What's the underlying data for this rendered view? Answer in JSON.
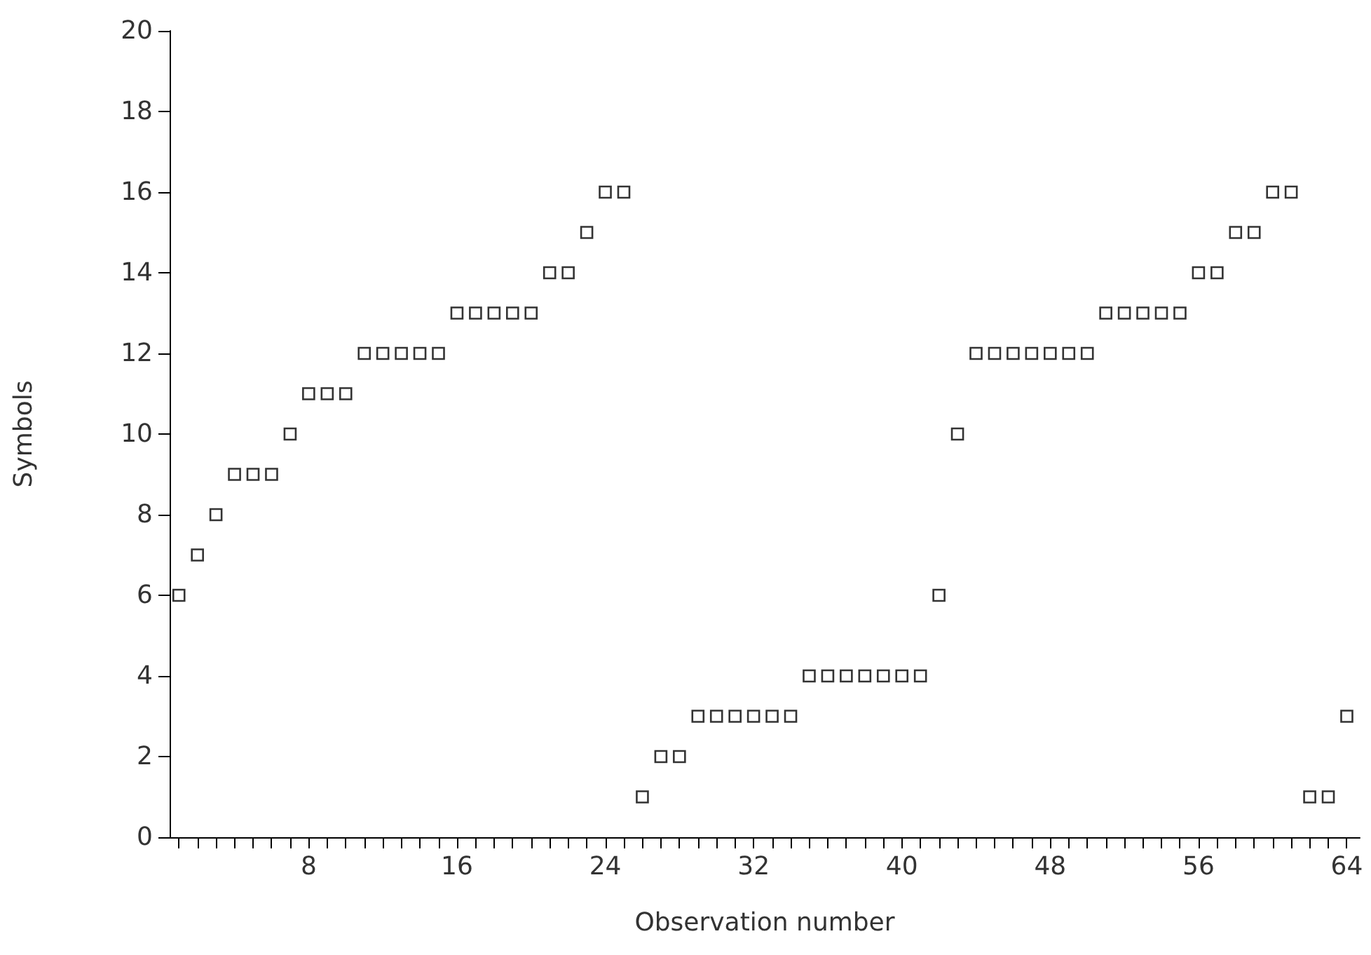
{
  "chart_data": {
    "type": "scatter",
    "xlabel": "Observation number",
    "ylabel": "Symbols",
    "marker": "square",
    "x": [
      1,
      2,
      3,
      4,
      5,
      6,
      7,
      8,
      9,
      10,
      11,
      12,
      13,
      14,
      15,
      16,
      17,
      18,
      19,
      20,
      21,
      22,
      23,
      24,
      25,
      26,
      27,
      28,
      29,
      30,
      31,
      32,
      33,
      34,
      35,
      36,
      37,
      38,
      39,
      40,
      41,
      42,
      43,
      44,
      45,
      46,
      47,
      48,
      49,
      50,
      51,
      52,
      53,
      54,
      55,
      56,
      57,
      58,
      59,
      60,
      61,
      62,
      63,
      64
    ],
    "series": [
      {
        "color": "#000000",
        "values": [
          6,
          7,
          8,
          9,
          9,
          9,
          10,
          11,
          11,
          11,
          12,
          12,
          12,
          12,
          12,
          13,
          13,
          13,
          13,
          13,
          14,
          14,
          15,
          16,
          16,
          1,
          2,
          2,
          3,
          3,
          3,
          3,
          3,
          3,
          4,
          4,
          4,
          4,
          4,
          4,
          4,
          6,
          10,
          12,
          12,
          12,
          12,
          12,
          12,
          12,
          13,
          13,
          13,
          13,
          13,
          14,
          14,
          15,
          15,
          16,
          16,
          1,
          1,
          3
        ]
      }
    ],
    "xlim": [
      0.5,
      64.7
    ],
    "xticks": [
      {
        "value": 1,
        "label": null
      },
      {
        "value": 2,
        "label": null
      },
      {
        "value": 3,
        "label": null
      },
      {
        "value": 4,
        "label": null
      },
      {
        "value": 5,
        "label": null
      },
      {
        "value": 6,
        "label": null
      },
      {
        "value": 7,
        "label": null
      },
      8,
      {
        "value": 9,
        "label": null
      },
      {
        "value": 10,
        "label": null
      },
      {
        "value": 11,
        "label": null
      },
      {
        "value": 12,
        "label": null
      },
      {
        "value": 13,
        "label": null
      },
      {
        "value": 14,
        "label": null
      },
      {
        "value": 15,
        "label": null
      },
      16,
      {
        "value": 17,
        "label": null
      },
      {
        "value": 18,
        "label": null
      },
      {
        "value": 19,
        "label": null
      },
      {
        "value": 20,
        "label": null
      },
      {
        "value": 21,
        "label": null
      },
      {
        "value": 22,
        "label": null
      },
      {
        "value": 23,
        "label": null
      },
      24,
      {
        "value": 25,
        "label": null
      },
      {
        "value": 26,
        "label": null
      },
      {
        "value": 27,
        "label": null
      },
      {
        "value": 28,
        "label": null
      },
      {
        "value": 29,
        "label": null
      },
      {
        "value": 30,
        "label": null
      },
      {
        "value": 31,
        "label": null
      },
      32,
      {
        "value": 33,
        "label": null
      },
      {
        "value": 34,
        "label": null
      },
      {
        "value": 35,
        "label": null
      },
      {
        "value": 36,
        "label": null
      },
      {
        "value": 37,
        "label": null
      },
      {
        "value": 38,
        "label": null
      },
      {
        "value": 39,
        "label": null
      },
      40,
      {
        "value": 41,
        "label": null
      },
      {
        "value": 42,
        "label": null
      },
      {
        "value": 43,
        "label": null
      },
      {
        "value": 44,
        "label": null
      },
      {
        "value": 45,
        "label": null
      },
      {
        "value": 46,
        "label": null
      },
      {
        "value": 47,
        "label": null
      },
      48,
      {
        "value": 49,
        "label": null
      },
      {
        "value": 50,
        "label": null
      },
      {
        "value": 51,
        "label": null
      },
      {
        "value": 52,
        "label": null
      },
      {
        "value": 53,
        "label": null
      },
      {
        "value": 54,
        "label": null
      },
      {
        "value": 55,
        "label": null
      },
      56,
      {
        "value": 57,
        "label": null
      },
      {
        "value": 58,
        "label": null
      },
      {
        "value": 59,
        "label": null
      },
      {
        "value": 60,
        "label": null
      },
      {
        "value": 61,
        "label": null
      },
      {
        "value": 62,
        "label": null
      },
      {
        "value": 63,
        "label": null
      },
      64
    ],
    "ylim": [
      0,
      20
    ],
    "yticks": [
      0,
      2,
      4,
      6,
      8,
      10,
      12,
      14,
      16,
      18,
      20
    ]
  }
}
